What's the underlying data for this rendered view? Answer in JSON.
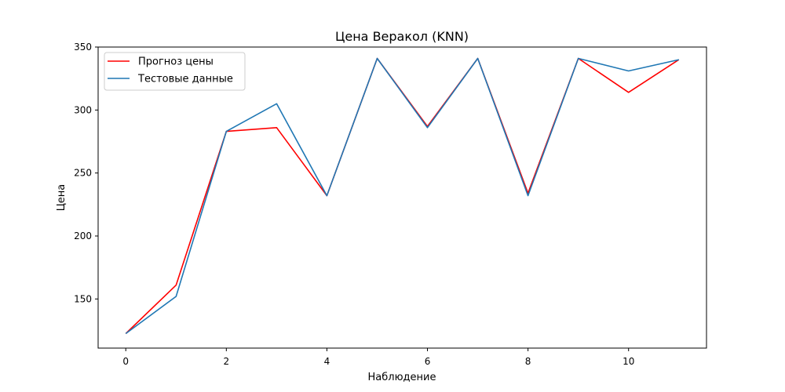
{
  "chart_data": {
    "type": "line",
    "title": "Цена Веракол  (KNN)",
    "xlabel": "Наблюдение",
    "ylabel": "Цена",
    "x": [
      0,
      1,
      2,
      3,
      4,
      5,
      6,
      7,
      8,
      9,
      10,
      11
    ],
    "xlim": [
      -0.55,
      11.55
    ],
    "ylim": [
      111,
      350
    ],
    "xticks": [
      0,
      2,
      4,
      6,
      8,
      10
    ],
    "yticks": [
      150,
      200,
      250,
      300,
      350
    ],
    "grid": false,
    "legend_position": "upper-left",
    "series": [
      {
        "name": "Прогноз цены",
        "color": "#ff0000",
        "values": [
          122.5,
          161,
          283,
          286,
          232,
          341,
          287,
          341,
          234,
          341,
          314,
          340
        ]
      },
      {
        "name": "Тестовые данные",
        "color": "#1f77b4",
        "values": [
          122.5,
          152,
          283,
          305,
          232,
          341,
          286,
          341,
          232,
          341,
          331,
          340
        ]
      }
    ]
  }
}
